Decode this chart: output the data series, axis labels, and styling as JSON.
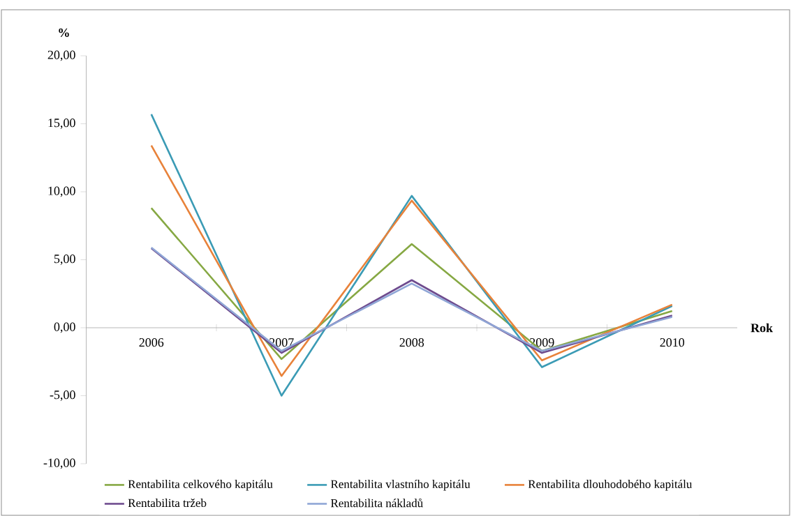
{
  "chart_data": {
    "type": "line",
    "xlabel": "Rok",
    "ylabel": "%",
    "categories": [
      "2006",
      "2007",
      "2008",
      "2009",
      "2010"
    ],
    "series": [
      {
        "name": "Rentabilita celkového kapitálu",
        "color": "#86a843",
        "values": [
          8.8,
          -2.3,
          6.15,
          -1.7,
          1.23
        ]
      },
      {
        "name": "Rentabilita vlastního kapitálu",
        "color": "#3b9bb5",
        "values": [
          15.7,
          -5.0,
          9.7,
          -2.9,
          1.6
        ]
      },
      {
        "name": "Rentabilita dlouhodobého kapitálu",
        "color": "#e8823a",
        "values": [
          13.4,
          -3.55,
          9.35,
          -2.4,
          1.7
        ]
      },
      {
        "name": "Rentabilita tržeb",
        "color": "#6e4b8e",
        "values": [
          5.85,
          -1.85,
          3.5,
          -1.85,
          0.9
        ]
      },
      {
        "name": "Rentabilita nákladů",
        "color": "#8fa6d6",
        "values": [
          5.9,
          -1.7,
          3.25,
          -1.7,
          0.8
        ]
      }
    ],
    "ylim": [
      -10,
      20
    ],
    "yticks": [
      {
        "value": -10,
        "label": "-10,00"
      },
      {
        "value": -5,
        "label": "-5,00"
      },
      {
        "value": 0,
        "label": "0,00"
      },
      {
        "value": 5,
        "label": "5,00"
      },
      {
        "value": 10,
        "label": "10,00"
      },
      {
        "value": 15,
        "label": "15,00"
      },
      {
        "value": 20,
        "label": "20,00"
      }
    ],
    "legend": "bottom",
    "grid": false,
    "marker": "none",
    "line_style": "solid"
  }
}
